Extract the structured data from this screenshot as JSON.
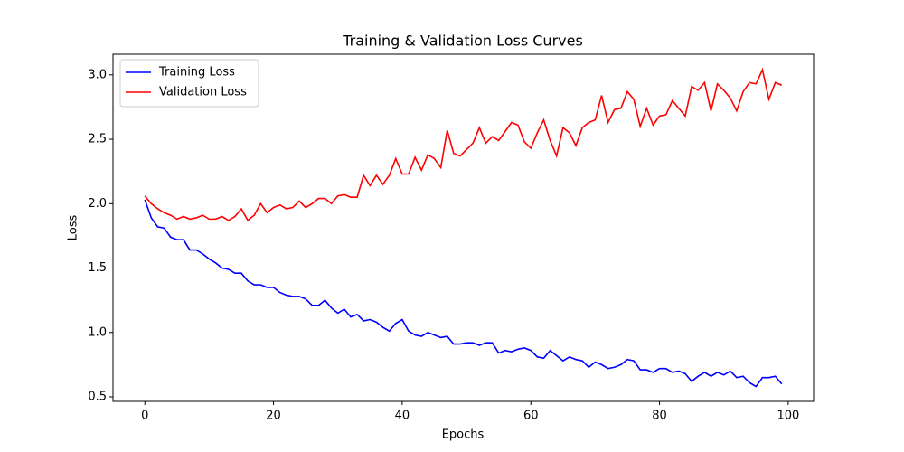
{
  "chart_data": {
    "type": "line",
    "title": "Training & Validation Loss Curves",
    "xlabel": "Epochs",
    "ylabel": "Loss",
    "x": [
      0,
      1,
      2,
      3,
      4,
      5,
      6,
      7,
      8,
      9,
      10,
      11,
      12,
      13,
      14,
      15,
      16,
      17,
      18,
      19,
      20,
      21,
      22,
      23,
      24,
      25,
      26,
      27,
      28,
      29,
      30,
      31,
      32,
      33,
      34,
      35,
      36,
      37,
      38,
      39,
      40,
      41,
      42,
      43,
      44,
      45,
      46,
      47,
      48,
      49,
      50,
      51,
      52,
      53,
      54,
      55,
      56,
      57,
      58,
      59,
      60,
      61,
      62,
      63,
      64,
      65,
      66,
      67,
      68,
      69,
      70,
      71,
      72,
      73,
      74,
      75,
      76,
      77,
      78,
      79,
      80,
      81,
      82,
      83,
      84,
      85,
      86,
      87,
      88,
      89,
      90,
      91,
      92,
      93,
      94,
      95,
      96,
      97,
      98,
      99
    ],
    "series": [
      {
        "name": "Training Loss",
        "color": "#0000ff",
        "values": [
          2.03,
          1.89,
          1.82,
          1.81,
          1.74,
          1.72,
          1.72,
          1.64,
          1.64,
          1.61,
          1.57,
          1.54,
          1.5,
          1.49,
          1.46,
          1.46,
          1.4,
          1.37,
          1.37,
          1.35,
          1.35,
          1.31,
          1.29,
          1.28,
          1.28,
          1.26,
          1.21,
          1.21,
          1.25,
          1.19,
          1.15,
          1.18,
          1.12,
          1.14,
          1.09,
          1.1,
          1.08,
          1.04,
          1.01,
          1.07,
          1.1,
          1.01,
          0.98,
          0.97,
          1.0,
          0.98,
          0.96,
          0.97,
          0.91,
          0.91,
          0.92,
          0.92,
          0.9,
          0.92,
          0.92,
          0.84,
          0.86,
          0.85,
          0.87,
          0.88,
          0.86,
          0.81,
          0.8,
          0.86,
          0.82,
          0.78,
          0.81,
          0.79,
          0.78,
          0.73,
          0.77,
          0.75,
          0.72,
          0.73,
          0.75,
          0.79,
          0.78,
          0.71,
          0.71,
          0.69,
          0.72,
          0.72,
          0.69,
          0.7,
          0.68,
          0.62,
          0.66,
          0.69,
          0.66,
          0.69,
          0.67,
          0.7,
          0.65,
          0.66,
          0.61,
          0.58,
          0.65,
          0.65,
          0.66,
          0.6
        ]
      },
      {
        "name": "Validation Loss",
        "color": "#ff0000",
        "values": [
          2.06,
          2.0,
          1.96,
          1.93,
          1.91,
          1.88,
          1.9,
          1.88,
          1.89,
          1.91,
          1.88,
          1.88,
          1.9,
          1.87,
          1.9,
          1.96,
          1.87,
          1.91,
          2.0,
          1.93,
          1.97,
          1.99,
          1.96,
          1.97,
          2.02,
          1.97,
          2.0,
          2.04,
          2.04,
          2.0,
          2.06,
          2.07,
          2.05,
          2.05,
          2.22,
          2.14,
          2.22,
          2.15,
          2.22,
          2.35,
          2.23,
          2.23,
          2.36,
          2.26,
          2.38,
          2.35,
          2.28,
          2.57,
          2.39,
          2.37,
          2.42,
          2.47,
          2.59,
          2.47,
          2.52,
          2.49,
          2.56,
          2.63,
          2.61,
          2.48,
          2.43,
          2.55,
          2.65,
          2.49,
          2.37,
          2.59,
          2.55,
          2.45,
          2.59,
          2.63,
          2.65,
          2.84,
          2.63,
          2.73,
          2.74,
          2.87,
          2.81,
          2.6,
          2.74,
          2.61,
          2.68,
          2.69,
          2.8,
          2.74,
          2.68,
          2.91,
          2.88,
          2.94,
          2.72,
          2.93,
          2.88,
          2.82,
          2.72,
          2.87,
          2.94,
          2.93,
          3.04,
          2.81,
          2.94,
          2.92
        ]
      }
    ],
    "xlim": [
      -4.95,
      103.95
    ],
    "ylim": [
      0.465,
      3.16
    ],
    "xticks": [
      0,
      20,
      40,
      60,
      80,
      100
    ],
    "yticks": [
      0.5,
      {
        "value": 1,
        "label": "1.0"
      },
      1.5,
      {
        "value": 2,
        "label": "2.0"
      },
      2.5,
      {
        "value": 3,
        "label": "3.0"
      }
    ],
    "legend": "upper left"
  }
}
